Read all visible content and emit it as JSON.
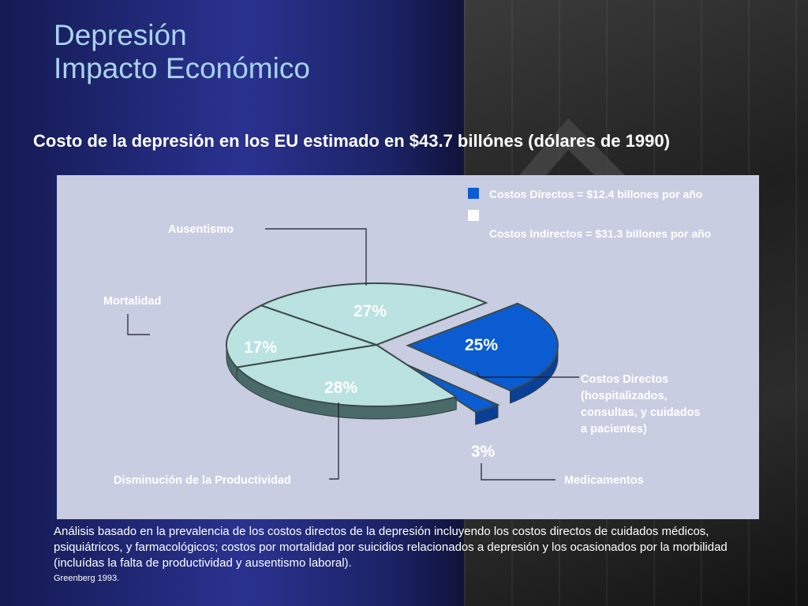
{
  "slide": {
    "title_line1": "Depresión",
    "title_line2": "Impacto Económico",
    "subtitle": "Costo de la depresión en los EU estimado en $43.7 billónes (dólares de 1990)",
    "footnote": "Análisis basado en la prevalencia de los costos directos de la depresión incluyendo los costos directos de cuidados médicos, psiquiátricos, y farmacológicos; costos por mortalidad por suicidios relacionados a depresión y los ocasionados por la morbilidad (incluídas la falta de productividad y ausentismo laboral).",
    "citation": "Greenberg 1993."
  },
  "legend": {
    "direct": "Costos Directos = $12.4 billones por año",
    "indirect": "Costos Indirectos = $31.3 billones  por año"
  },
  "colors": {
    "direct": "#0a5cd0",
    "direct_side": "#0a3f96",
    "indirect": "#b9e2e0",
    "indirect_side": "#4a6a6a",
    "panel": "#c9cde1"
  },
  "chart_data": {
    "type": "pie",
    "title": "",
    "slices": [
      {
        "label": "Costos Directos (hospitalizados, consultas, y cuidados a pacientes)",
        "value": 25,
        "value_label": "25%",
        "group": "direct"
      },
      {
        "label": "Medicamentos",
        "value": 3,
        "value_label": "3%",
        "group": "direct"
      },
      {
        "label": "Disminución  de la  Productividad",
        "value": 28,
        "value_label": "28%",
        "group": "indirect"
      },
      {
        "label": "Mortalidad",
        "value": 17,
        "value_label": "17%",
        "group": "indirect"
      },
      {
        "label": "Ausentismo",
        "value": 27,
        "value_label": "27%",
        "group": "indirect"
      }
    ],
    "legend_position": "top-right"
  }
}
